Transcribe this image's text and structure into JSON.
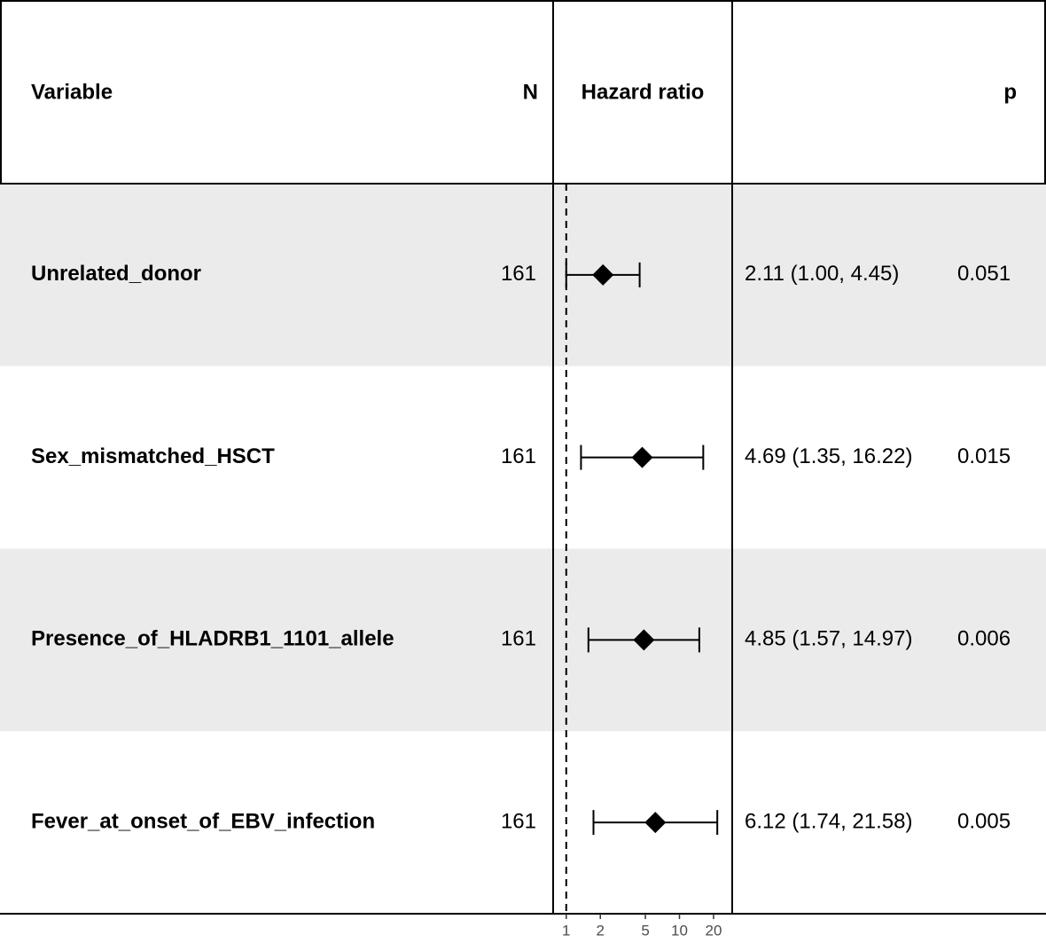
{
  "chart_data": {
    "type": "forest",
    "headers": {
      "variable": "Variable",
      "n": "N",
      "estimate": "Hazard ratio",
      "p": "p"
    },
    "categories": [
      "Unrelated_donor",
      "Sex_mismatched_HSCT",
      "Presence_of_HLADRB1_1101_allele",
      "Fever_at_onset_of_EBV_infection"
    ],
    "n": [
      161,
      161,
      161,
      161
    ],
    "values": [
      2.11,
      4.69,
      4.85,
      6.12
    ],
    "lower": [
      1.0,
      1.35,
      1.57,
      1.74
    ],
    "upper": [
      4.45,
      16.22,
      14.97,
      21.58
    ],
    "value_labels": [
      "2.11 (1.00, 4.45)",
      "4.69 (1.35, 16.22)",
      "4.85 (1.57, 14.97)",
      "6.12 (1.74, 21.58)"
    ],
    "p": [
      0.051,
      0.015,
      0.006,
      0.005
    ],
    "reference": 1,
    "log_x": true,
    "xlim": [
      0.78,
      28.7
    ],
    "xticks": [
      1,
      2,
      5,
      10,
      20
    ],
    "color": "#000000",
    "stripe_color": "#ebebeb"
  }
}
